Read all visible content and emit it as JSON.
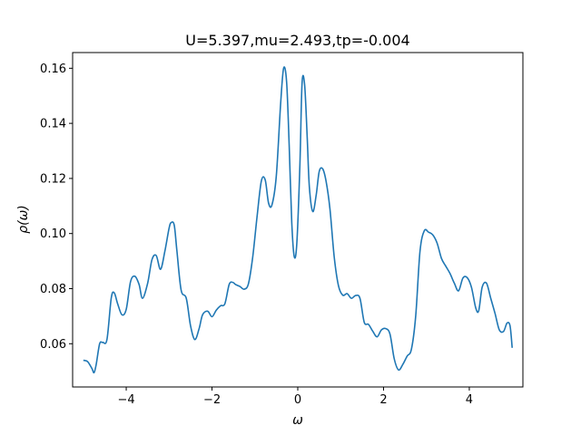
{
  "chart_data": {
    "type": "line",
    "title": "U=5.397,mu=2.493,tp=-0.004",
    "xlabel": "ω",
    "ylabel": "ρ(ω)",
    "xlim": [
      -5.25,
      5.25
    ],
    "ylim": [
      0.0443,
      0.1657
    ],
    "xticks": [
      -4,
      -2,
      0,
      2,
      4
    ],
    "xtick_labels": [
      "−4",
      "−2",
      "0",
      "2",
      "4"
    ],
    "yticks": [
      0.06,
      0.08,
      0.1,
      0.12,
      0.14,
      0.16
    ],
    "ytick_labels": [
      "0.06",
      "0.08",
      "0.10",
      "0.12",
      "0.14",
      "0.16"
    ],
    "grid": false,
    "series": [
      {
        "color": "#1f77b4",
        "x": [
          -5.0,
          -4.9,
          -4.8,
          -4.75,
          -4.7,
          -4.62,
          -4.55,
          -4.45,
          -4.35,
          -4.28,
          -4.2,
          -4.1,
          -4.0,
          -3.9,
          -3.8,
          -3.7,
          -3.62,
          -3.5,
          -3.4,
          -3.3,
          -3.2,
          -3.1,
          -3.0,
          -2.95,
          -2.88,
          -2.82,
          -2.72,
          -2.6,
          -2.5,
          -2.4,
          -2.3,
          -2.22,
          -2.1,
          -2.0,
          -1.9,
          -1.8,
          -1.7,
          -1.6,
          -1.52,
          -1.45,
          -1.35,
          -1.25,
          -1.15,
          -1.05,
          -0.95,
          -0.85,
          -0.76,
          -0.68,
          -0.6,
          -0.5,
          -0.4,
          -0.33,
          -0.26,
          -0.2,
          -0.14,
          -0.08,
          -0.02,
          0.05,
          0.1,
          0.16,
          0.22,
          0.27,
          0.35,
          0.43,
          0.5,
          0.58,
          0.66,
          0.75,
          0.85,
          0.95,
          1.05,
          1.15,
          1.25,
          1.35,
          1.45,
          1.55,
          1.65,
          1.75,
          1.85,
          1.95,
          2.05,
          2.15,
          2.25,
          2.35,
          2.45,
          2.55,
          2.65,
          2.75,
          2.85,
          2.95,
          3.05,
          3.15,
          3.25,
          3.35,
          3.45,
          3.55,
          3.65,
          3.75,
          3.85,
          3.95,
          4.05,
          4.15,
          4.22,
          4.3,
          4.4,
          4.5,
          4.6,
          4.7,
          4.8,
          4.88,
          4.95,
          5.0
        ],
        "y": [
          0.054,
          0.0535,
          0.051,
          0.0495,
          0.0525,
          0.06,
          0.0605,
          0.0615,
          0.0765,
          0.0785,
          0.0745,
          0.0705,
          0.0725,
          0.0825,
          0.0845,
          0.0815,
          0.0765,
          0.082,
          0.0905,
          0.092,
          0.087,
          0.0935,
          0.102,
          0.104,
          0.103,
          0.094,
          0.0795,
          0.0765,
          0.0665,
          0.0615,
          0.0655,
          0.0705,
          0.0718,
          0.0698,
          0.0722,
          0.0738,
          0.0745,
          0.0815,
          0.0823,
          0.0815,
          0.0808,
          0.0798,
          0.0818,
          0.0915,
          0.106,
          0.119,
          0.1195,
          0.111,
          0.1105,
          0.121,
          0.147,
          0.16,
          0.155,
          0.132,
          0.104,
          0.0915,
          0.097,
          0.125,
          0.1545,
          0.154,
          0.135,
          0.117,
          0.108,
          0.114,
          0.1225,
          0.1235,
          0.119,
          0.109,
          0.0915,
          0.081,
          0.0776,
          0.0782,
          0.0765,
          0.0775,
          0.0765,
          0.0678,
          0.067,
          0.0645,
          0.0625,
          0.065,
          0.0655,
          0.0635,
          0.0545,
          0.0505,
          0.0525,
          0.0555,
          0.058,
          0.07,
          0.0935,
          0.101,
          0.1005,
          0.0995,
          0.0965,
          0.091,
          0.0882,
          0.0855,
          0.082,
          0.0792,
          0.0838,
          0.084,
          0.0805,
          0.073,
          0.072,
          0.0805,
          0.082,
          0.0765,
          0.071,
          0.065,
          0.0645,
          0.0675,
          0.0665,
          0.0585
        ]
      }
    ]
  }
}
